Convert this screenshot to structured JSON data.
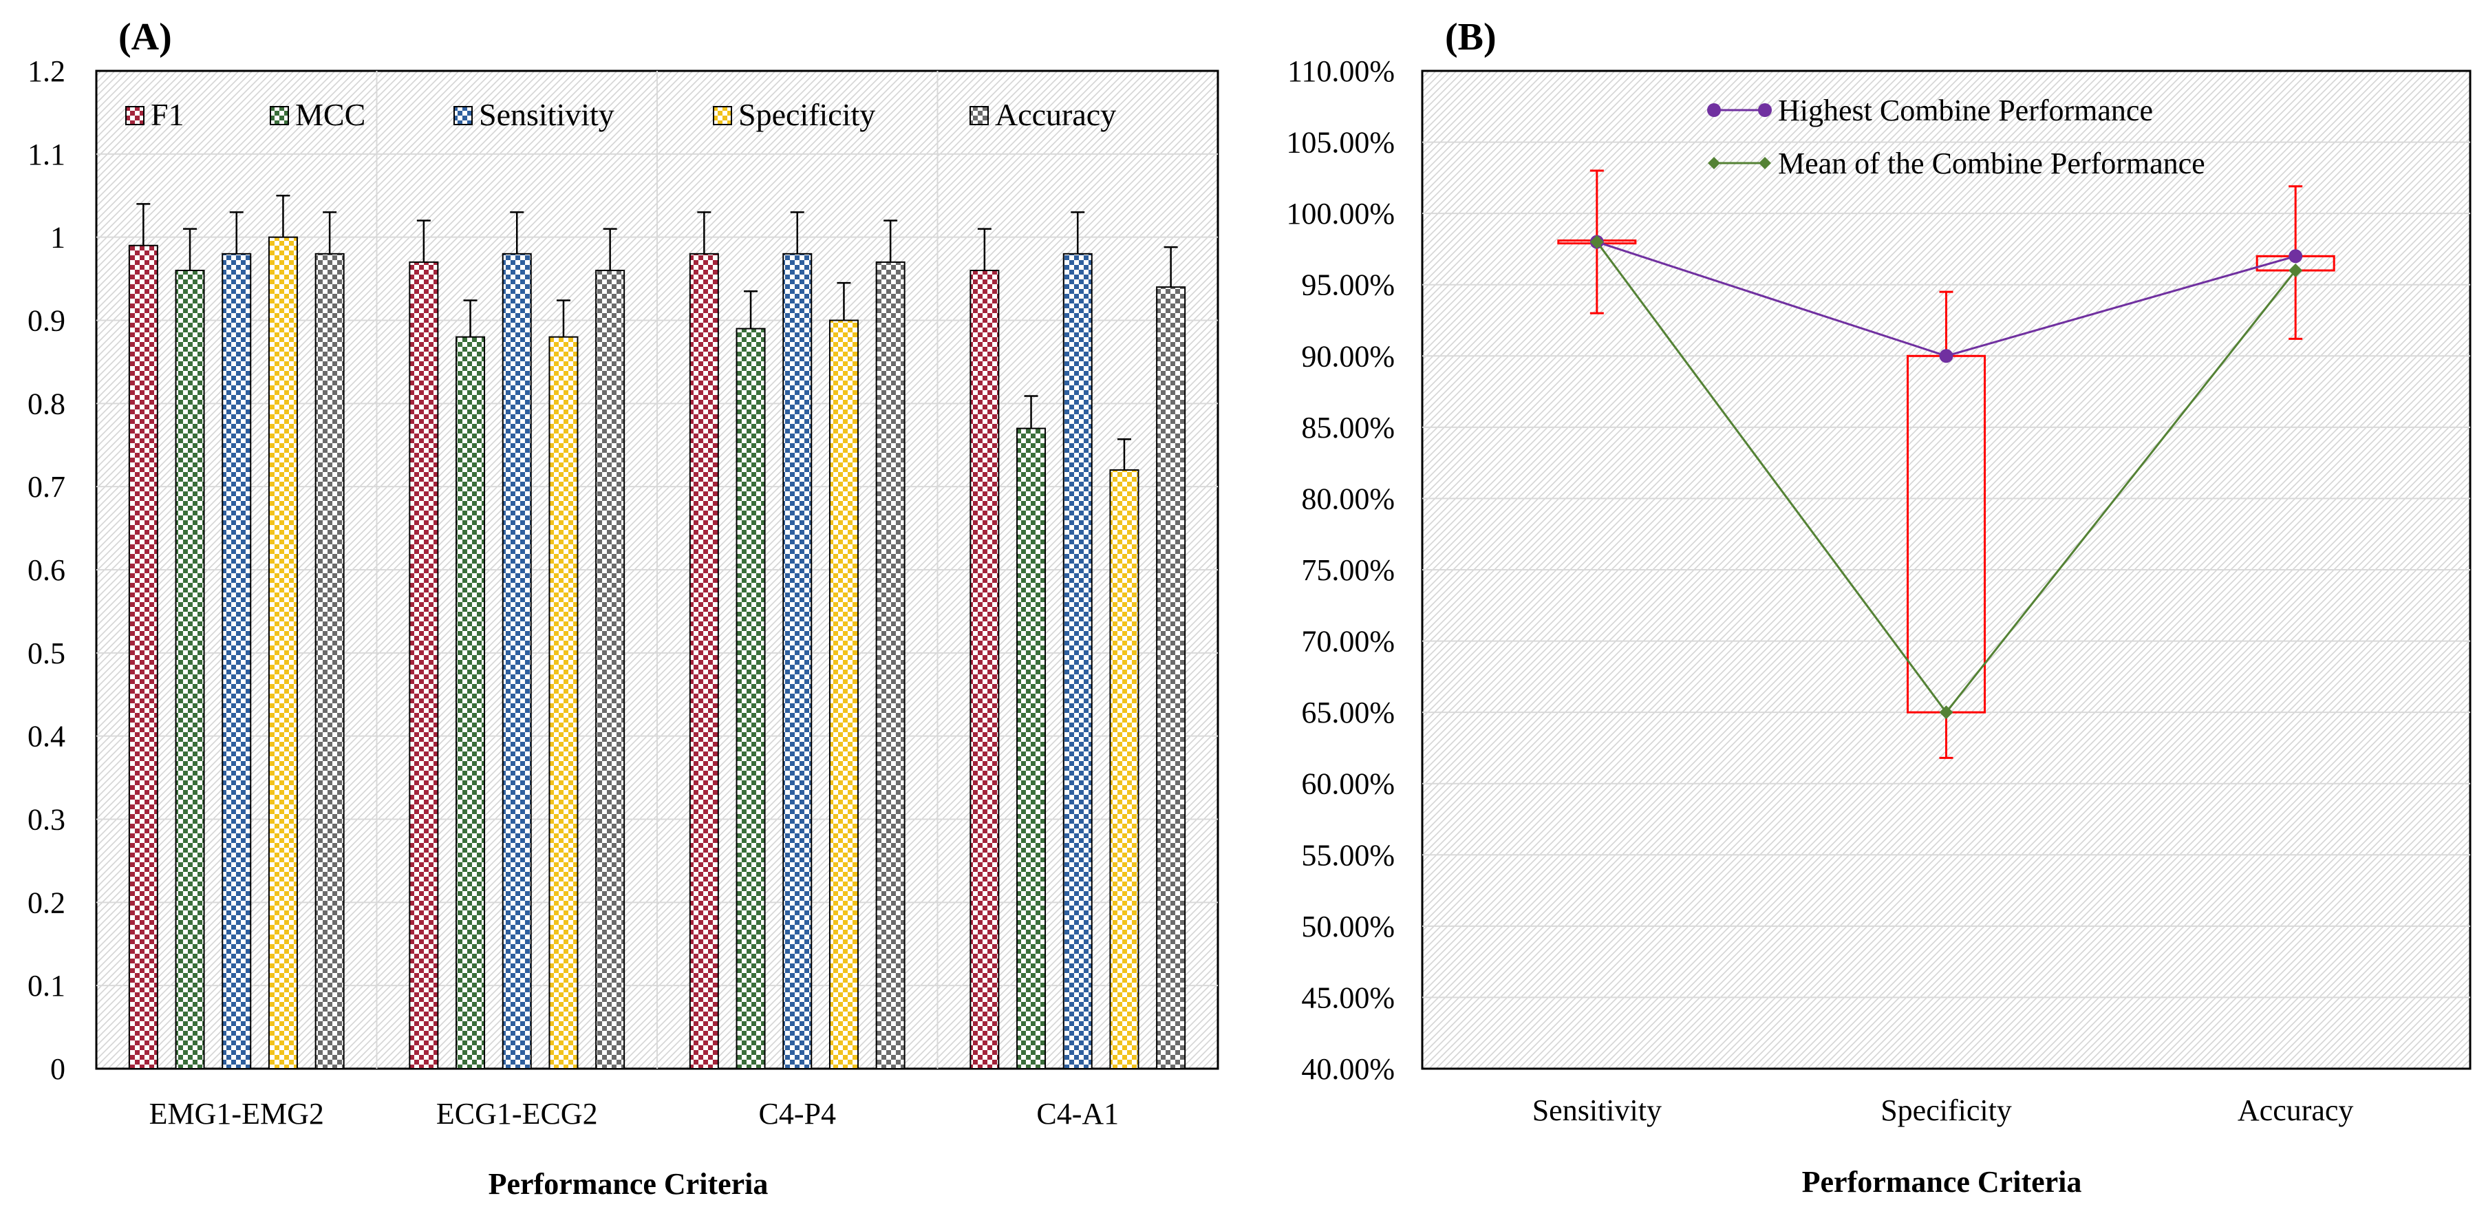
{
  "chart_data": [
    {
      "panel_label": "(A)",
      "type": "bar",
      "title": "",
      "xlabel": "Performance Criteria",
      "ylabel": "",
      "ylim": [
        0,
        1.2
      ],
      "yticks": [
        "0",
        "0.1",
        "0.2",
        "0.3",
        "0.4",
        "0.5",
        "0.6",
        "0.7",
        "0.8",
        "0.9",
        "1",
        "1.1",
        "1.2"
      ],
      "legend_position": "top",
      "grid": true,
      "categories": [
        "EMG1-EMG2",
        "ECG1-ECG2",
        "C4-P4",
        "C4-A1"
      ],
      "series": [
        {
          "name": "F1",
          "color": "#a3243b",
          "values": [
            0.99,
            0.97,
            0.98,
            0.96
          ],
          "errors": [
            0.05,
            0.05,
            0.05,
            0.05
          ]
        },
        {
          "name": "MCC",
          "color": "#3a6e3a",
          "values": [
            0.96,
            0.88,
            0.89,
            0.77
          ],
          "errors": [
            0.05,
            0.044,
            0.045,
            0.039
          ]
        },
        {
          "name": "Sensitivity",
          "color": "#2e5f9e",
          "values": [
            0.98,
            0.98,
            0.98,
            0.98
          ],
          "errors": [
            0.05,
            0.05,
            0.05,
            0.05
          ]
        },
        {
          "name": "Specificity",
          "color": "#f2c21b",
          "values": [
            1.0,
            0.88,
            0.9,
            0.72
          ],
          "errors": [
            0.05,
            0.044,
            0.045,
            0.037
          ]
        },
        {
          "name": "Accuracy",
          "color": "#6b6b6b",
          "values": [
            0.98,
            0.96,
            0.97,
            0.94
          ],
          "errors": [
            0.05,
            0.05,
            0.05,
            0.048
          ]
        }
      ]
    },
    {
      "panel_label": "(B)",
      "type": "line",
      "title": "",
      "xlabel": "Performance Criteria",
      "ylabel": "",
      "ylim": [
        0.4,
        1.1
      ],
      "yticks": [
        "40.00%",
        "45.00%",
        "50.00%",
        "55.00%",
        "60.00%",
        "65.00%",
        "70.00%",
        "75.00%",
        "80.00%",
        "85.00%",
        "90.00%",
        "95.00%",
        "100.00%",
        "105.00%",
        "110.00%"
      ],
      "legend_position": "top",
      "grid": true,
      "categories": [
        "Sensitivity",
        "Specificity",
        "Accuracy"
      ],
      "series": [
        {
          "name": "Highest Combine Performance",
          "color": "#7030a0",
          "marker": "circle",
          "values": [
            0.98,
            0.9,
            0.97
          ]
        },
        {
          "name": "Mean of the Combine Performance",
          "color": "#548235",
          "marker": "diamond",
          "values": [
            0.98,
            0.65,
            0.96
          ]
        }
      ],
      "boxes": {
        "color": "#ff0000",
        "low": [
          0.979,
          0.65,
          0.96
        ],
        "high": [
          0.981,
          0.9,
          0.97
        ],
        "whisker_low": [
          0.93,
          0.618,
          0.912
        ],
        "whisker_high": [
          1.03,
          0.945,
          1.019
        ]
      }
    }
  ]
}
